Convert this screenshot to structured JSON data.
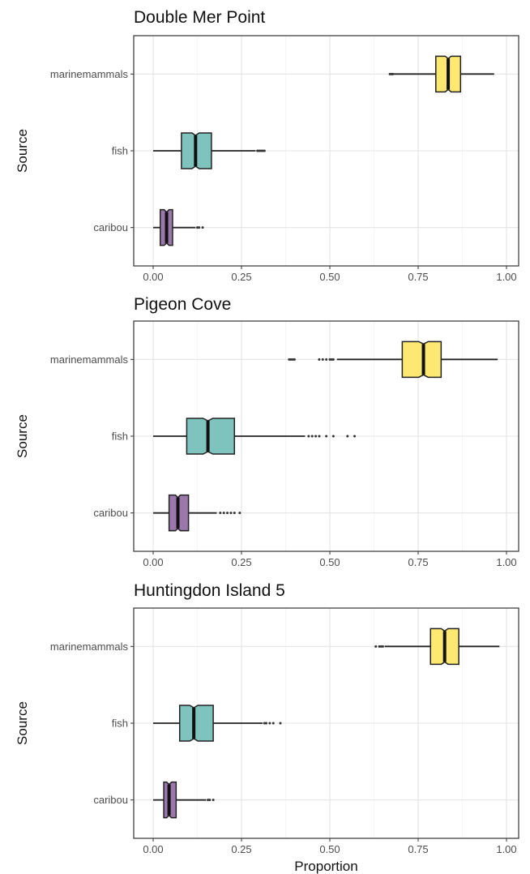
{
  "chart_data": [
    {
      "type": "boxplot",
      "orientation": "horizontal",
      "title": "Double Mer Point",
      "ylabel": "Source",
      "xlabel": "",
      "xlim": [
        0,
        1
      ],
      "xticks": [
        "0.00",
        "0.25",
        "0.50",
        "0.75",
        "1.00"
      ],
      "categories": [
        "marinemammals",
        "fish",
        "caribou"
      ],
      "boxes": [
        {
          "category": "marinemammals",
          "color": "#fde872",
          "min": 0.68,
          "q1": 0.8,
          "median": 0.835,
          "q3": 0.87,
          "max": 0.965,
          "outliers": [
            0.67,
            0.675,
            0.678
          ]
        },
        {
          "category": "fish",
          "color": "#7fc3bf",
          "min": 0.0,
          "q1": 0.08,
          "median": 0.12,
          "q3": 0.165,
          "max": 0.29,
          "outliers": [
            0.295,
            0.3,
            0.305,
            0.31,
            0.315
          ]
        },
        {
          "category": "caribou",
          "color": "#9b78ac",
          "min": 0.0,
          "q1": 0.02,
          "median": 0.038,
          "q3": 0.055,
          "max": 0.12,
          "outliers": [
            0.125,
            0.13,
            0.14
          ]
        }
      ]
    },
    {
      "type": "boxplot",
      "orientation": "horizontal",
      "title": "Pigeon Cove",
      "ylabel": "Source",
      "xlabel": "",
      "xlim": [
        0,
        1
      ],
      "xticks": [
        "0.00",
        "0.25",
        "0.50",
        "0.75",
        "1.00"
      ],
      "categories": [
        "marinemammals",
        "fish",
        "caribou"
      ],
      "boxes": [
        {
          "category": "marinemammals",
          "color": "#fde872",
          "min": 0.52,
          "q1": 0.705,
          "median": 0.765,
          "q3": 0.815,
          "max": 0.975,
          "outliers": [
            0.385,
            0.39,
            0.395,
            0.4,
            0.47,
            0.48,
            0.49,
            0.5,
            0.505,
            0.51
          ]
        },
        {
          "category": "fish",
          "color": "#7fc3bf",
          "min": 0.0,
          "q1": 0.095,
          "median": 0.155,
          "q3": 0.23,
          "max": 0.43,
          "outliers": [
            0.44,
            0.45,
            0.46,
            0.47,
            0.49,
            0.51,
            0.55,
            0.57
          ]
        },
        {
          "category": "caribou",
          "color": "#9b78ac",
          "min": 0.0,
          "q1": 0.045,
          "median": 0.07,
          "q3": 0.1,
          "max": 0.18,
          "outliers": [
            0.19,
            0.2,
            0.21,
            0.22,
            0.23,
            0.245
          ]
        }
      ]
    },
    {
      "type": "boxplot",
      "orientation": "horizontal",
      "title": "Huntingdon Island 5",
      "ylabel": "Source",
      "xlabel": "Proportion",
      "xlim": [
        0,
        1
      ],
      "xticks": [
        "0.00",
        "0.25",
        "0.50",
        "0.75",
        "1.00"
      ],
      "categories": [
        "marinemammals",
        "fish",
        "caribou"
      ],
      "boxes": [
        {
          "category": "marinemammals",
          "color": "#fde872",
          "min": 0.655,
          "q1": 0.785,
          "median": 0.825,
          "q3": 0.865,
          "max": 0.98,
          "outliers": [
            0.63,
            0.64,
            0.645,
            0.65
          ]
        },
        {
          "category": "fish",
          "color": "#7fc3bf",
          "min": 0.0,
          "q1": 0.075,
          "median": 0.115,
          "q3": 0.17,
          "max": 0.31,
          "outliers": [
            0.315,
            0.32,
            0.33,
            0.34,
            0.36
          ]
        },
        {
          "category": "caribou",
          "color": "#9b78ac",
          "min": 0.0,
          "q1": 0.03,
          "median": 0.045,
          "q3": 0.065,
          "max": 0.15,
          "outliers": [
            0.155,
            0.16,
            0.17
          ]
        }
      ]
    }
  ]
}
